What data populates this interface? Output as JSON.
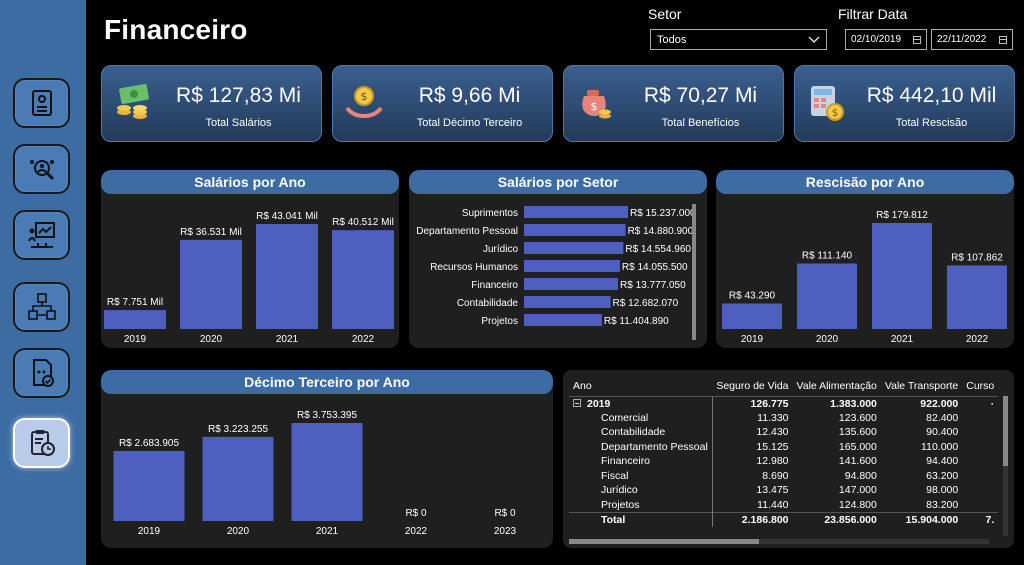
{
  "page": {
    "title": "Financeiro"
  },
  "filters": {
    "setor_label": "Setor",
    "setor_value": "Todos",
    "date_label": "Filtrar Data",
    "date_start": "02/10/2019",
    "date_end": "22/11/2022"
  },
  "sidebar": {
    "items": [
      {
        "icon": "id-card-icon"
      },
      {
        "icon": "search-people-icon"
      },
      {
        "icon": "presentation-icon"
      },
      {
        "icon": "org-chart-icon"
      },
      {
        "icon": "document-check-icon"
      },
      {
        "icon": "clipboard-clock-icon",
        "active": true
      }
    ]
  },
  "kpis": [
    {
      "value": "R$ 127,83 Mi",
      "label": "Total Salários",
      "icon": "money-coins-icon"
    },
    {
      "value": "R$ 9,66 Mi",
      "label": "Total Décimo Terceiro",
      "icon": "hand-coin-icon"
    },
    {
      "value": "R$ 70,27 Mi",
      "label": "Total Benefícios",
      "icon": "money-bag-icon"
    },
    {
      "value": "R$ 442,10 Mil",
      "label": "Total Rescisão",
      "icon": "calculator-icon"
    }
  ],
  "charts": {
    "salarios_ano": {
      "title": "Salários por Ano",
      "chart_data": {
        "type": "bar",
        "categories": [
          "2019",
          "2020",
          "2021",
          "2022"
        ],
        "values": [
          7.751,
          36.531,
          43.041,
          40.512
        ],
        "labels": [
          "R$ 7.751 Mil",
          "R$ 36.531 Mil",
          "R$ 43.041 Mil",
          "R$ 40.512 Mil"
        ],
        "ylim": [
          0,
          43.041
        ]
      }
    },
    "salarios_setor": {
      "title": "Salários por Setor",
      "chart_data": {
        "type": "bar",
        "orientation": "horizontal",
        "categories": [
          "Suprimentos",
          "Departamento Pessoal",
          "Jurídico",
          "Recursos Humanos",
          "Financeiro",
          "Contabilidade",
          "Projetos"
        ],
        "values": [
          15237000,
          14880900,
          14554960,
          14055500,
          13777050,
          12682070,
          11404890
        ],
        "labels": [
          "R$ 15.237.000",
          "R$ 14.880.900",
          "R$ 14.554.960",
          "R$ 14.055.500",
          "R$ 13.777.050",
          "R$ 12.682.070",
          "R$ 11.404.890"
        ],
        "ylim": [
          0,
          15237000
        ]
      }
    },
    "rescisao_ano": {
      "title": "Rescisão por Ano",
      "chart_data": {
        "type": "bar",
        "categories": [
          "2019",
          "2020",
          "2021",
          "2022"
        ],
        "values": [
          43290,
          111140,
          179812,
          107862
        ],
        "labels": [
          "R$ 43.290",
          "R$ 111.140",
          "R$ 179.812",
          "R$ 107.862"
        ],
        "ylim": [
          0,
          179812
        ]
      }
    },
    "decimo_ano": {
      "title": "Décimo Terceiro por Ano",
      "chart_data": {
        "type": "bar",
        "categories": [
          "2019",
          "2020",
          "2021",
          "2022",
          "2023"
        ],
        "values": [
          2683905,
          3223255,
          3753395,
          0,
          0
        ],
        "labels": [
          "R$ 2.683.905",
          "R$ 3.223.255",
          "R$ 3.753.395",
          "R$ 0",
          "R$ 0"
        ],
        "ylim": [
          0,
          3753395
        ]
      }
    }
  },
  "table": {
    "headers": [
      "Ano",
      "Seguro de Vida",
      "Vale Alimentação",
      "Vale Transporte",
      "Curso"
    ],
    "year_row": {
      "label": "2019",
      "values": [
        "126.775",
        "1.383.000",
        "922.000",
        "·"
      ]
    },
    "rows": [
      {
        "label": "Comercial",
        "values": [
          "11.330",
          "123.600",
          "82.400"
        ]
      },
      {
        "label": "Contabilidade",
        "values": [
          "12.430",
          "135.600",
          "90.400"
        ]
      },
      {
        "label": "Departamento Pessoal",
        "values": [
          "15.125",
          "165.000",
          "110.000"
        ]
      },
      {
        "label": "Financeiro",
        "values": [
          "12.980",
          "141.600",
          "94.400"
        ]
      },
      {
        "label": "Fiscal",
        "values": [
          "8.690",
          "94.800",
          "63.200"
        ]
      },
      {
        "label": "Jurídico",
        "values": [
          "13.475",
          "147.000",
          "98.000"
        ]
      },
      {
        "label": "Projetos",
        "values": [
          "11.440",
          "124.800",
          "83.200"
        ]
      }
    ],
    "total_row": {
      "label": "Total",
      "values": [
        "2.186.800",
        "23.856.000",
        "15.904.000",
        "7."
      ]
    }
  }
}
